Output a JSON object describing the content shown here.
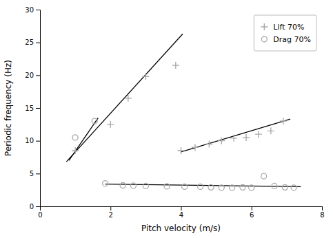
{
  "chart_data": {
    "type": "scatter",
    "xlabel": "Pitch velocity (m/s)",
    "ylabel": "Periodic frequency (Hz)",
    "xlim": [
      0,
      8
    ],
    "ylim": [
      0,
      30
    ],
    "xticks": [
      0,
      2,
      4,
      6,
      8
    ],
    "yticks": [
      0,
      5,
      10,
      15,
      20,
      25,
      30
    ],
    "grid": false,
    "legend": "upper right",
    "series": [
      {
        "type": "scatter",
        "marker": "plus",
        "color": "#aaaaaa",
        "x": [
          1.0,
          2.0,
          2.5,
          3.0,
          3.85
        ],
        "values": [
          8.5,
          12.5,
          16.5,
          19.8,
          21.5
        ]
      },
      {
        "name": "Lift 70%",
        "type": "scatter",
        "marker": "plus",
        "color": "#aaaaaa",
        "x": [
          4.0,
          4.4,
          4.8,
          5.15,
          5.5,
          5.85,
          6.2,
          6.55,
          6.9
        ],
        "values": [
          8.5,
          9.0,
          9.5,
          10.0,
          10.4,
          10.5,
          11.0,
          11.5,
          13.0
        ]
      },
      {
        "type": "scatter",
        "marker": "circle",
        "color": "#aaaaaa",
        "x": [
          1.0,
          1.55
        ],
        "values": [
          10.5,
          13.0
        ]
      },
      {
        "name": "Drag 70%",
        "type": "scatter",
        "marker": "circle",
        "color": "#aaaaaa",
        "x": [
          1.85,
          2.35,
          2.65,
          3.0,
          3.6,
          4.1,
          4.55,
          4.85,
          5.15,
          5.45,
          5.75,
          6.0,
          6.35,
          6.65,
          6.95,
          7.2
        ],
        "values": [
          3.5,
          3.2,
          3.15,
          3.1,
          3.05,
          3.0,
          3.0,
          2.9,
          2.85,
          2.85,
          2.9,
          2.85,
          4.6,
          3.1,
          2.9,
          2.85
        ]
      },
      {
        "type": "line",
        "color": "#000000",
        "x": [
          0.75,
          4.05
        ],
        "values": [
          6.8,
          26.3
        ]
      },
      {
        "type": "line",
        "color": "#000000",
        "x": [
          4.0,
          7.1
        ],
        "values": [
          8.3,
          13.3
        ]
      },
      {
        "type": "line",
        "color": "#000000",
        "x": [
          1.85,
          7.4
        ],
        "values": [
          3.4,
          3.0
        ]
      },
      {
        "type": "line",
        "color": "#000000",
        "x": [
          0.82,
          1.65
        ],
        "values": [
          7.0,
          13.5
        ]
      }
    ]
  }
}
